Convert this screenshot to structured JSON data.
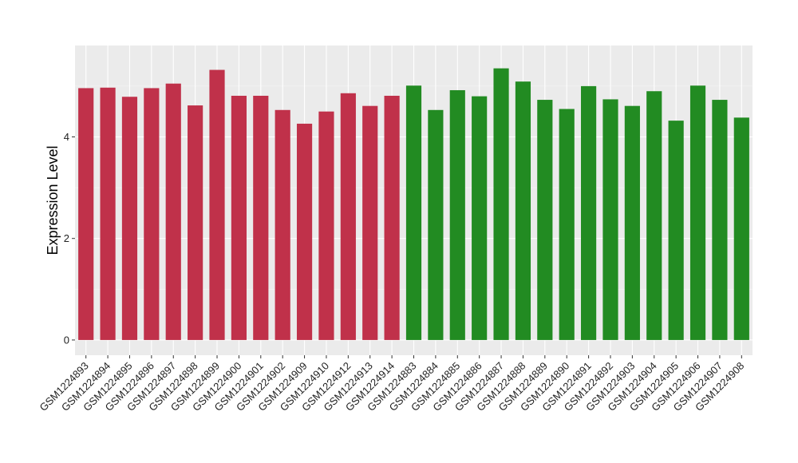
{
  "chart_data": {
    "type": "bar",
    "title": "",
    "xlabel": "",
    "ylabel": "Expression Level",
    "ylim": [
      -0.3,
      5.8
    ],
    "yticks": [
      0,
      2,
      4
    ],
    "grid": true,
    "legend": "none",
    "categories": [
      "GSM1224893",
      "GSM1224894",
      "GSM1224895",
      "GSM1224896",
      "GSM1224897",
      "GSM1224898",
      "GSM1224899",
      "GSM1224900",
      "GSM1224901",
      "GSM1224902",
      "GSM1224909",
      "GSM1224910",
      "GSM1224912",
      "GSM1224913",
      "GSM1224914",
      "GSM1224883",
      "GSM1224884",
      "GSM1224885",
      "GSM1224886",
      "GSM1224887",
      "GSM1224888",
      "GSM1224889",
      "GSM1224890",
      "GSM1224891",
      "GSM1224892",
      "GSM1224903",
      "GSM1224904",
      "GSM1224905",
      "GSM1224906",
      "GSM1224907",
      "GSM1224908"
    ],
    "values": [
      4.96,
      4.97,
      4.79,
      4.96,
      5.05,
      4.62,
      5.32,
      4.81,
      4.81,
      4.53,
      4.26,
      4.5,
      4.86,
      4.61,
      4.81,
      5.01,
      4.53,
      4.92,
      4.8,
      5.35,
      5.09,
      4.73,
      4.55,
      5.0,
      4.74,
      4.61,
      4.9,
      4.32,
      5.01,
      4.73,
      4.38
    ],
    "group_index": [
      0,
      0,
      0,
      0,
      0,
      0,
      0,
      0,
      0,
      0,
      0,
      0,
      0,
      0,
      0,
      1,
      1,
      1,
      1,
      1,
      1,
      1,
      1,
      1,
      1,
      1,
      1,
      1,
      1,
      1,
      1
    ],
    "colors": {
      "groups": [
        "#C0314A",
        "#228B22"
      ],
      "panel_background": "#EBEBEB",
      "grid_major": "#FFFFFF",
      "axis_text": "#222222"
    }
  }
}
